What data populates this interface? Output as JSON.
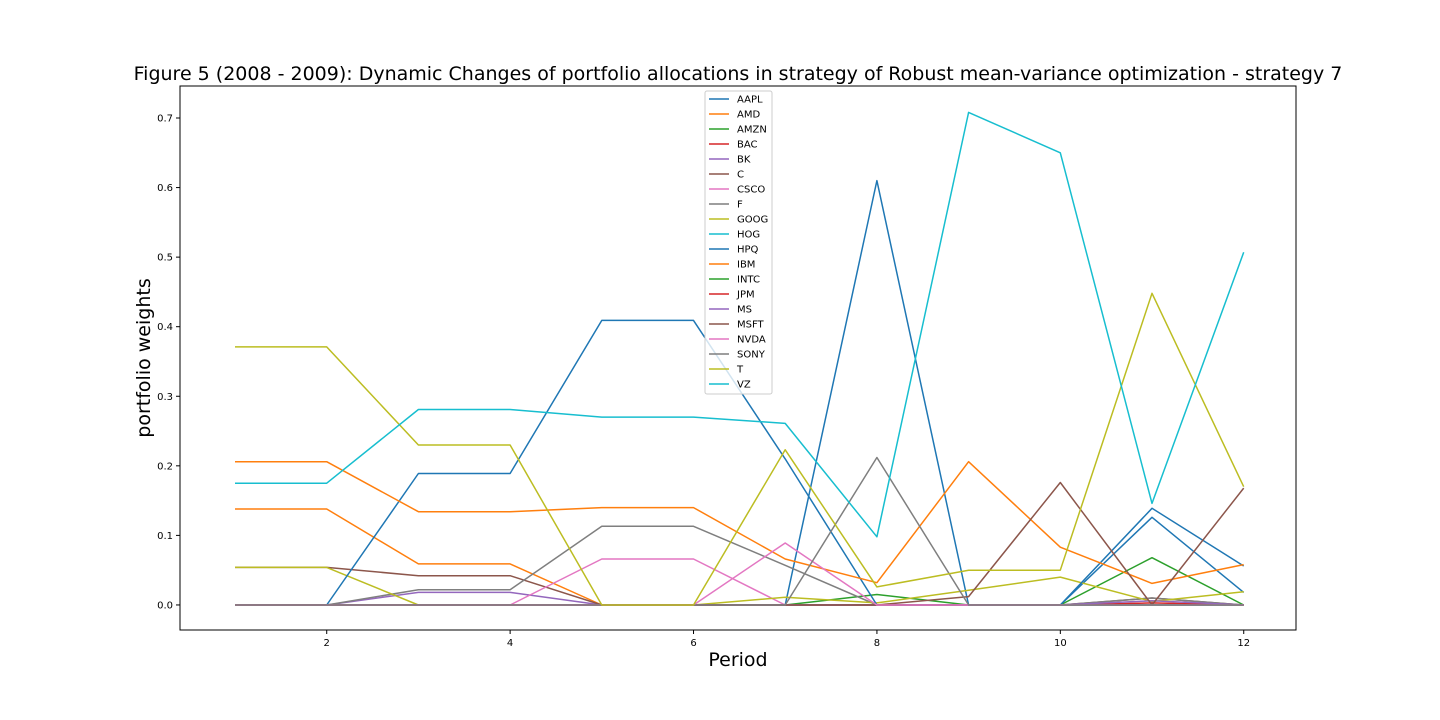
{
  "chart_data": {
    "type": "line",
    "title": "Figure 5 (2008 - 2009): Dynamic Changes of portfolio allocations in strategy of Robust mean-variance optimization - strategy 7",
    "xlabel": "Period",
    "ylabel": "portfolio weights",
    "xlim": [
      0.4,
      12.57
    ],
    "ylim": [
      -0.036,
      0.746
    ],
    "xticks": [
      2,
      4,
      6,
      8,
      10,
      12
    ],
    "yticks": [
      0.0,
      0.1,
      0.2,
      0.3,
      0.4,
      0.5,
      0.6,
      0.7
    ],
    "ytick_labels": [
      "0.0",
      "0.1",
      "0.2",
      "0.3",
      "0.4",
      "0.5",
      "0.6",
      "0.7"
    ],
    "grid": false,
    "legend_position": "upper center",
    "x": [
      1,
      2,
      3,
      4,
      5,
      6,
      7,
      8,
      9,
      10,
      11,
      12
    ],
    "series": [
      {
        "name": "AAPL",
        "color": "#1f77b4",
        "values": [
          0,
          0,
          0,
          0,
          0,
          0,
          0,
          0.61,
          0,
          0,
          0.126,
          0.018
        ]
      },
      {
        "name": "AMD",
        "color": "#ff7f0e",
        "values": [
          0.138,
          0.138,
          0.059,
          0.059,
          0,
          0,
          0,
          0,
          0,
          0,
          0,
          0
        ]
      },
      {
        "name": "AMZN",
        "color": "#2ca02c",
        "values": [
          0,
          0,
          0,
          0,
          0,
          0,
          0,
          0.015,
          0,
          0,
          0.068,
          0
        ]
      },
      {
        "name": "BAC",
        "color": "#d62728",
        "values": [
          0,
          0,
          0,
          0,
          0,
          0,
          0,
          0,
          0,
          0,
          0,
          0
        ]
      },
      {
        "name": "BK",
        "color": "#9467bd",
        "values": [
          0,
          0,
          0.018,
          0.018,
          0,
          0,
          0,
          0,
          0,
          0,
          0,
          0
        ]
      },
      {
        "name": "C",
        "color": "#8c564b",
        "values": [
          0.054,
          0.054,
          0.042,
          0.042,
          0,
          0,
          0,
          0,
          0,
          0,
          0.01,
          0
        ]
      },
      {
        "name": "CSCO",
        "color": "#e377c2",
        "values": [
          0,
          0,
          0,
          0,
          0.066,
          0.066,
          0,
          0,
          0,
          0,
          0,
          0
        ]
      },
      {
        "name": "F",
        "color": "#7f7f7f",
        "values": [
          0,
          0,
          0.022,
          0.022,
          0.113,
          0.113,
          0.057,
          0,
          0,
          0,
          0.01,
          0
        ]
      },
      {
        "name": "GOOG",
        "color": "#bcbd22",
        "values": [
          0.054,
          0.054,
          0,
          0,
          0,
          0,
          0.011,
          0.003,
          0.021,
          0.04,
          0.005,
          0.019
        ]
      },
      {
        "name": "HOG",
        "color": "#17becf",
        "values": [
          0,
          0,
          0,
          0,
          0,
          0,
          0,
          0,
          0,
          0,
          0,
          0
        ]
      },
      {
        "name": "HPQ",
        "color": "#1f77b4",
        "values": [
          0,
          0,
          0.189,
          0.189,
          0.409,
          0.409,
          0.21,
          0,
          0,
          0,
          0.139,
          0.056
        ]
      },
      {
        "name": "IBM",
        "color": "#ff7f0e",
        "values": [
          0.206,
          0.206,
          0.134,
          0.134,
          0.14,
          0.14,
          0.066,
          0.032,
          0.206,
          0.083,
          0.031,
          0.058
        ]
      },
      {
        "name": "INTC",
        "color": "#2ca02c",
        "values": [
          0,
          0,
          0,
          0,
          0,
          0,
          0,
          0,
          0,
          0,
          0,
          0
        ]
      },
      {
        "name": "JPM",
        "color": "#d62728",
        "values": [
          0,
          0,
          0,
          0,
          0,
          0,
          0,
          0,
          0,
          0,
          0.003,
          0
        ]
      },
      {
        "name": "MS",
        "color": "#9467bd",
        "values": [
          0,
          0,
          0,
          0,
          0,
          0,
          0,
          0,
          0,
          0,
          0.006,
          0
        ]
      },
      {
        "name": "MSFT",
        "color": "#8c564b",
        "values": [
          0,
          0,
          0,
          0,
          0,
          0,
          0,
          0,
          0.012,
          0.176,
          0,
          0.168
        ]
      },
      {
        "name": "NVDA",
        "color": "#e377c2",
        "values": [
          0,
          0,
          0,
          0,
          0,
          0,
          0.089,
          0,
          0,
          0,
          0,
          0
        ]
      },
      {
        "name": "SONY",
        "color": "#7f7f7f",
        "values": [
          0,
          0,
          0,
          0,
          0,
          0,
          0,
          0.212,
          0,
          0,
          0,
          0
        ]
      },
      {
        "name": "T",
        "color": "#bcbd22",
        "values": [
          0.371,
          0.371,
          0.23,
          0.23,
          0,
          0,
          0.223,
          0.026,
          0.05,
          0.05,
          0.448,
          0.17
        ]
      },
      {
        "name": "VZ",
        "color": "#17becf",
        "values": [
          0.175,
          0.175,
          0.281,
          0.281,
          0.27,
          0.27,
          0.261,
          0.098,
          0.708,
          0.65,
          0.146,
          0.507
        ]
      }
    ]
  }
}
